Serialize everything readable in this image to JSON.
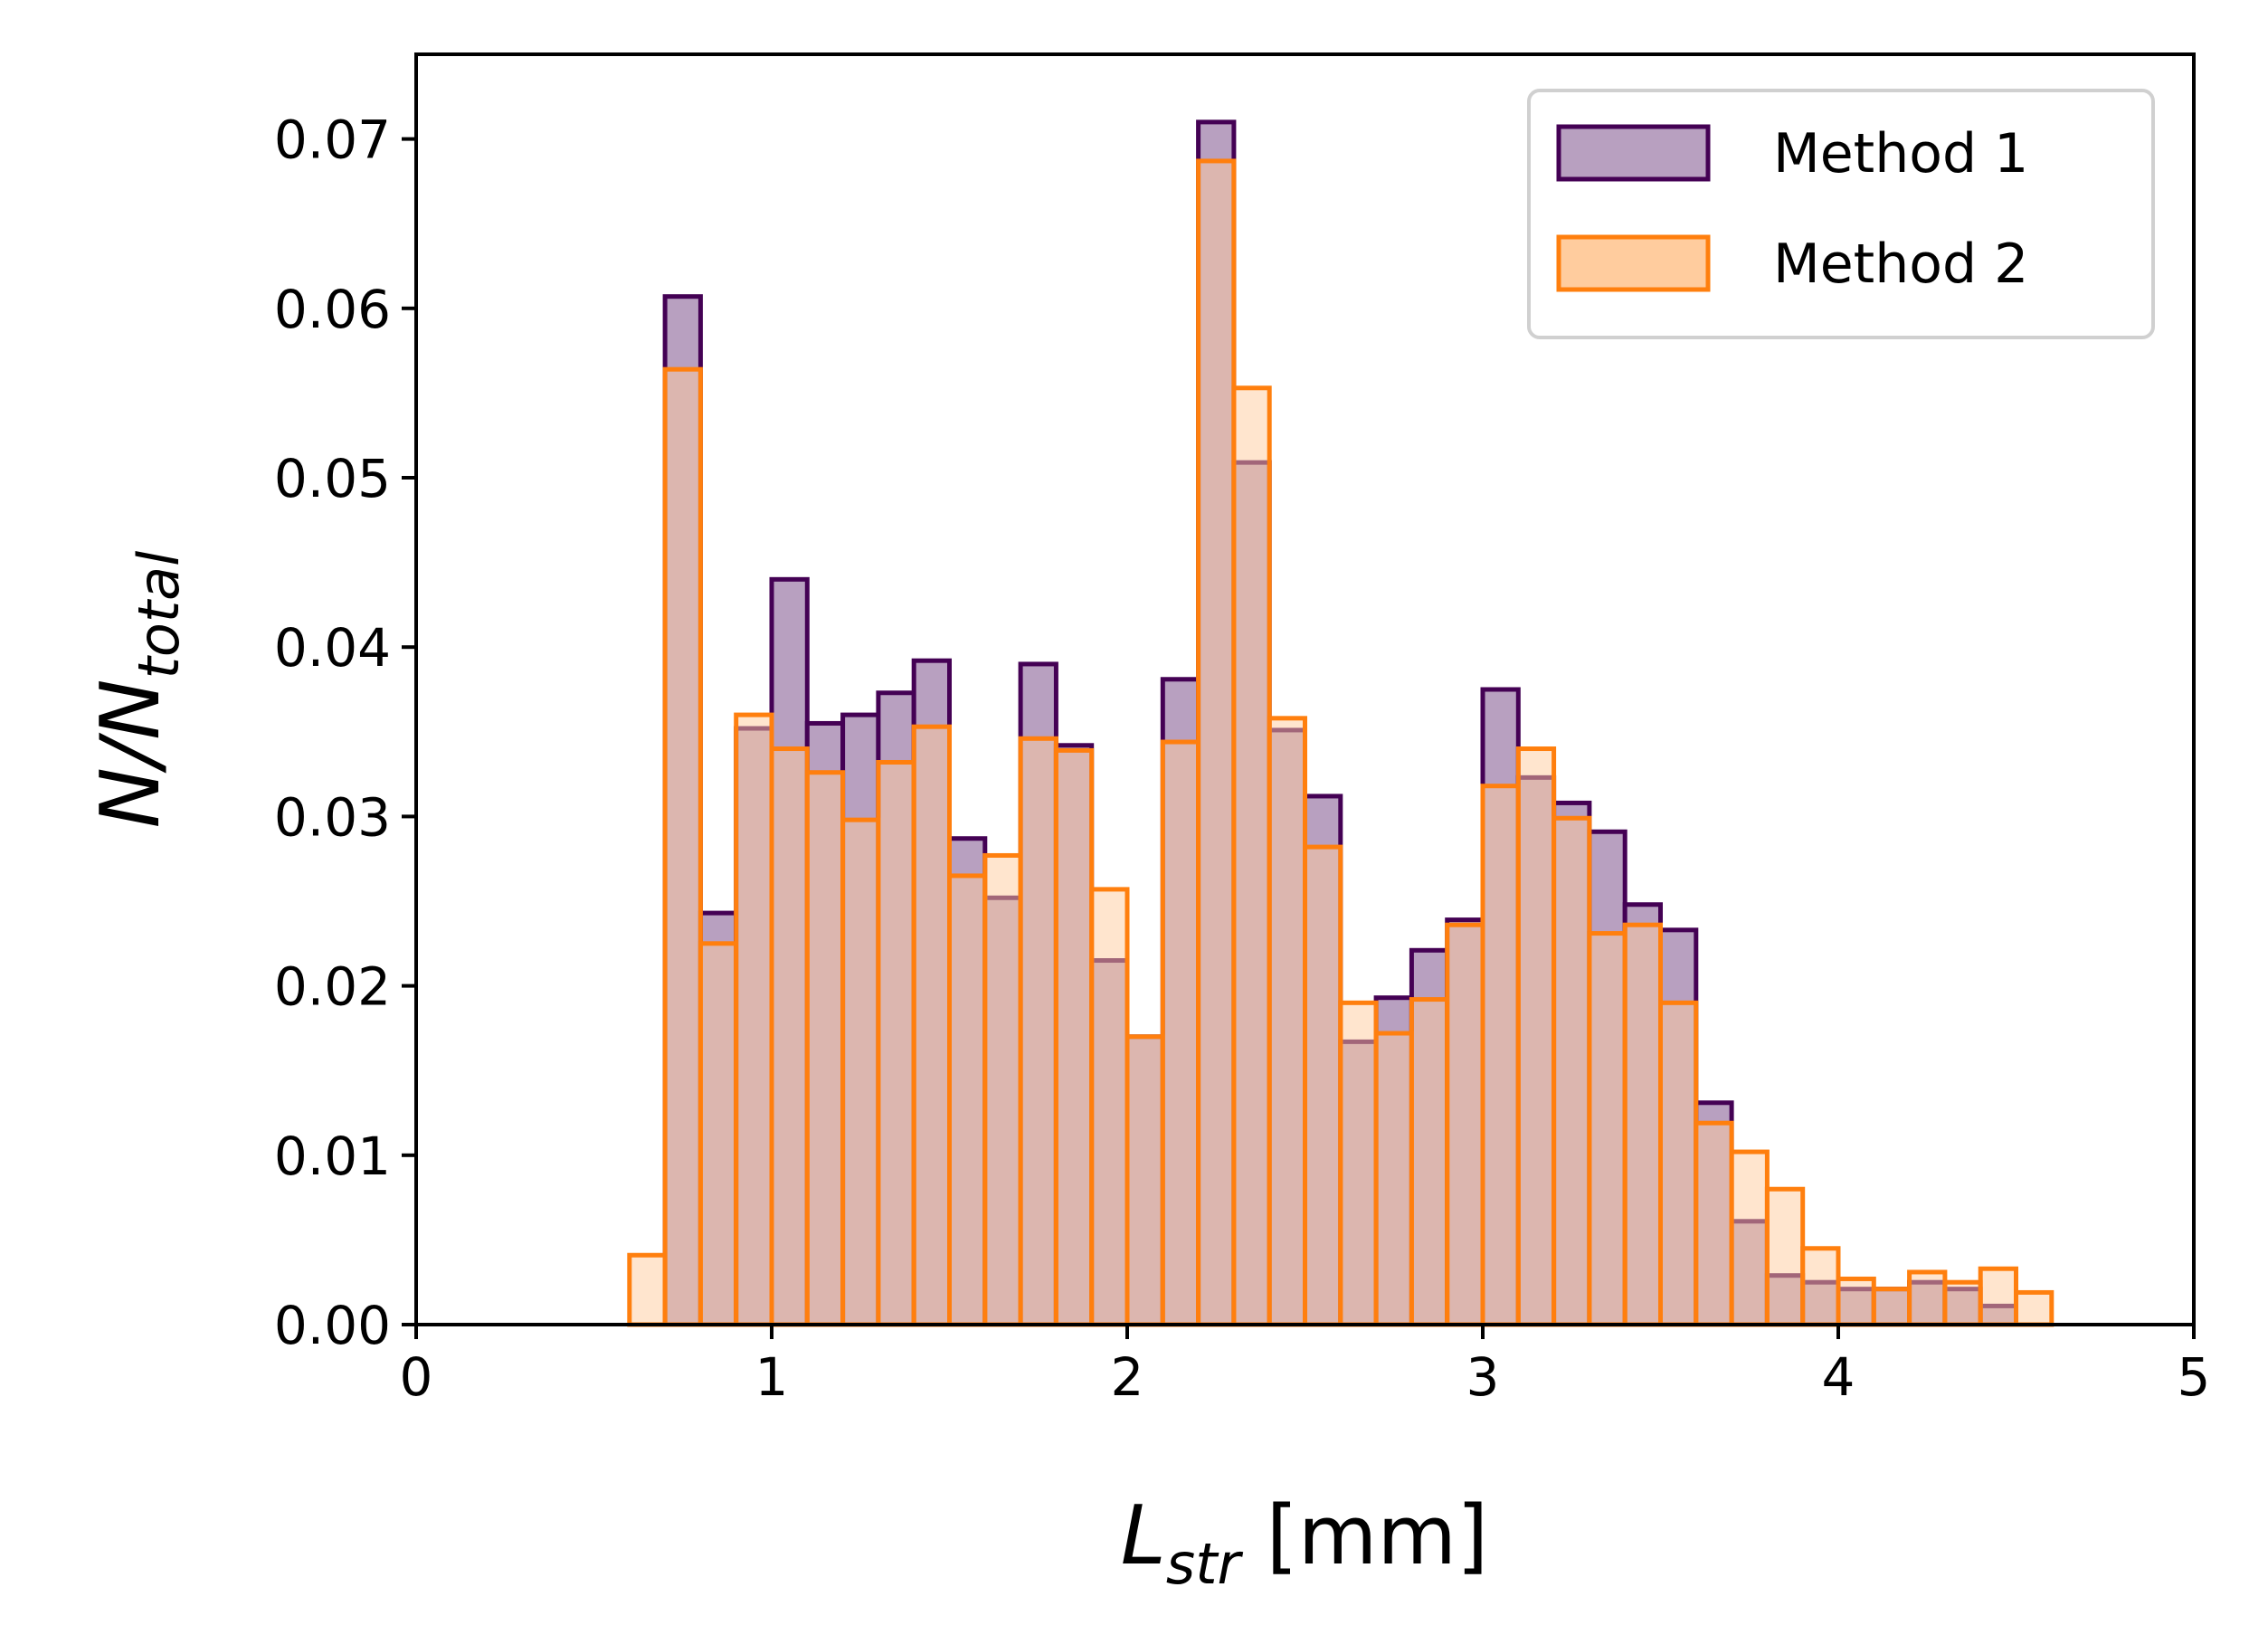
{
  "chart_data": {
    "type": "bar",
    "subtype": "overlaid-histogram",
    "title": "",
    "xlabel": {
      "symbol": "L",
      "subscript": "str",
      "unit": " [mm]"
    },
    "ylabel": {
      "symbol": "N/N",
      "subscript": "total"
    },
    "xlim": [
      0,
      5
    ],
    "ylim": [
      0,
      0.075
    ],
    "xticks": [
      "0",
      "1",
      "2",
      "3",
      "4",
      "5"
    ],
    "yticks": [
      "0.00",
      "0.01",
      "0.02",
      "0.03",
      "0.04",
      "0.05",
      "0.06",
      "0.07"
    ],
    "bin_edges": [
      0.6,
      0.7,
      0.8,
      0.9,
      1.0,
      1.1,
      1.2,
      1.3,
      1.4,
      1.5,
      1.6,
      1.7,
      1.8,
      1.9,
      2.0,
      2.1,
      2.2,
      2.3,
      2.4,
      2.5,
      2.6,
      2.7,
      2.8,
      2.9,
      3.0,
      3.1,
      3.2,
      3.3,
      3.4,
      3.5,
      3.6,
      3.7,
      3.8,
      3.9,
      4.0,
      4.1,
      4.2,
      4.3,
      4.4,
      4.5,
      4.6
    ],
    "series": [
      {
        "name": "Method 1",
        "edge_color": "#440154",
        "fill_color": "#b8a0c0",
        "values": [
          0.0,
          0.0607,
          0.0243,
          0.0352,
          0.044,
          0.0355,
          0.036,
          0.0373,
          0.0392,
          0.0287,
          0.0252,
          0.039,
          0.0342,
          0.0215,
          0.017,
          0.0381,
          0.071,
          0.0509,
          0.0351,
          0.0312,
          0.0167,
          0.0193,
          0.0221,
          0.0239,
          0.0375,
          0.0323,
          0.0308,
          0.0291,
          0.0248,
          0.0233,
          0.0131,
          0.0061,
          0.0029,
          0.0025,
          0.0021,
          0.0021,
          0.0025,
          0.0021,
          0.0011,
          0.0
        ]
      },
      {
        "name": "Method 2",
        "edge_color": "#ff7f0e",
        "fill_color": "#ffcc9e",
        "values": [
          0.0041,
          0.0564,
          0.0225,
          0.036,
          0.034,
          0.0326,
          0.0298,
          0.0332,
          0.0353,
          0.0265,
          0.0277,
          0.0346,
          0.0339,
          0.0257,
          0.017,
          0.0344,
          0.0687,
          0.0553,
          0.0358,
          0.0282,
          0.019,
          0.0172,
          0.0192,
          0.0236,
          0.0318,
          0.034,
          0.0299,
          0.0231,
          0.0236,
          0.019,
          0.0119,
          0.0102,
          0.008,
          0.0045,
          0.0027,
          0.0021,
          0.0031,
          0.0025,
          0.0033,
          0.0019
        ]
      }
    ],
    "legend": {
      "position": "top-right",
      "entries": [
        "Method 1",
        "Method 2"
      ]
    },
    "grid": false
  }
}
